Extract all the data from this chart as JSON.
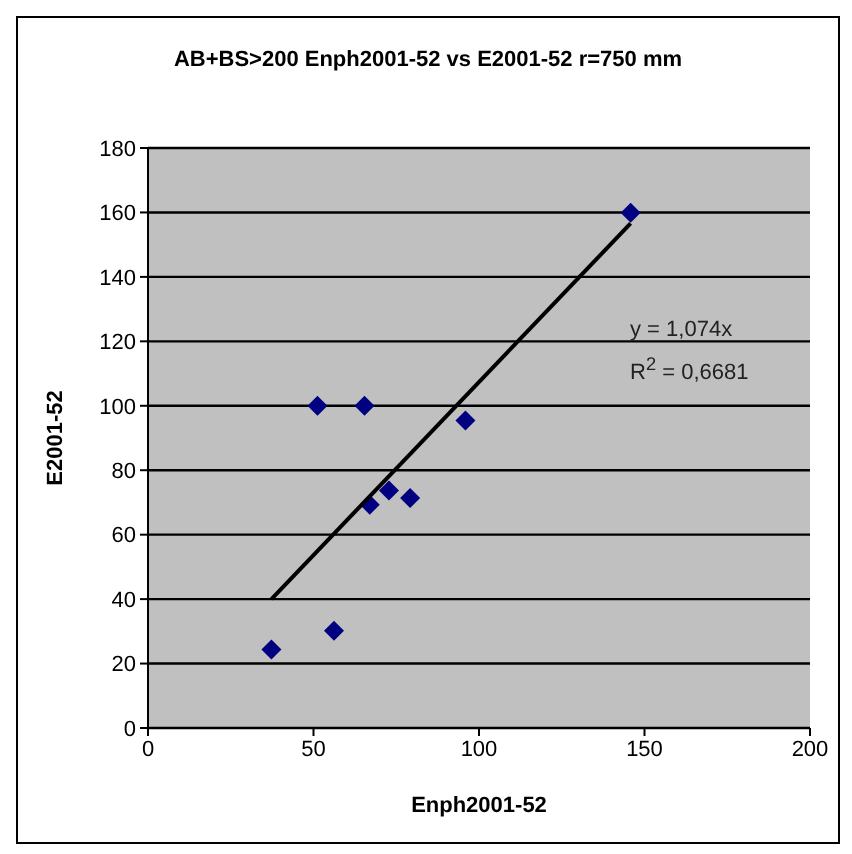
{
  "chart_data": {
    "type": "scatter",
    "title": "AB+BS>200 Enph2001-52 vs E2001-52 r=750 mm",
    "xlabel": "Enph2001-52",
    "ylabel": "E2001-52",
    "x": [
      37.3,
      51.2,
      65.4,
      67.0,
      72.8,
      79.2,
      56.2,
      95.9,
      145.8
    ],
    "series": [
      {
        "color": "#000080",
        "values": [
          24.4,
          100,
          100,
          69.3,
          73.7,
          71.4,
          30.2,
          95.4,
          159.9
        ],
        "marker": "diamond"
      },
      {
        "type": "line",
        "color": "#000000",
        "x": [
          37.3,
          145.8
        ],
        "values": [
          40,
          156.6
        ],
        "marker": "none"
      }
    ],
    "xlim": [
      0,
      200
    ],
    "xticks": [
      0,
      50,
      100,
      150,
      200
    ],
    "ylim": [
      0,
      180
    ],
    "yticks": [
      0,
      20,
      40,
      60,
      80,
      100,
      120,
      140,
      160,
      180
    ],
    "grid": "y",
    "annotations": [
      "y = 1,074x",
      "R$^{2}$ = 0,6681"
    ]
  }
}
